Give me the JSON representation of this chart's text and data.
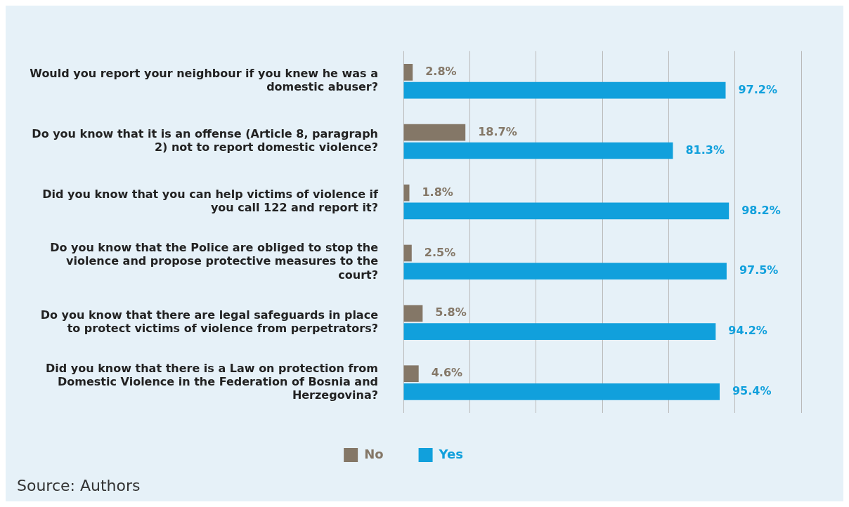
{
  "chart_data": {
    "type": "bar",
    "orientation": "horizontal",
    "categories": [
      "Would you report your neighbour if you knew he was a domestic abuser?",
      "Do you know that it is an offense (Article 8, paragraph 2) not to report domestic violence?",
      "Did you know that you can help victims of violence if you call 122 and report it?",
      "Do you know that the Police are obliged to stop the violence and propose protective measures to the court?",
      "Do you know that there are legal safeguards in place to protect victims of violence from perpetrators?",
      "Did you know that there is a Law on protection from Domestic Violence in the Federation of Bosnia and Herzegovina?"
    ],
    "series": [
      {
        "name": "No",
        "color": "#847767",
        "values": [
          2.8,
          18.7,
          1.8,
          2.5,
          5.8,
          4.6
        ],
        "value_labels": [
          "2.8%",
          "18.7%",
          "1.8%",
          "2.5%",
          "5.8%",
          "4.6%"
        ]
      },
      {
        "name": "Yes",
        "color": "#11a0dc",
        "values": [
          97.2,
          81.3,
          98.2,
          97.5,
          94.2,
          95.4
        ],
        "value_labels": [
          "97.2%",
          "81.3%",
          "98.2%",
          "97.5%",
          "94.2%",
          "95.4%"
        ]
      }
    ],
    "xlim": [
      0,
      120
    ],
    "xticks": [
      {
        "value": 0,
        "label": null
      },
      {
        "value": 20,
        "label": null
      },
      {
        "value": 40,
        "label": null
      },
      {
        "value": 60,
        "label": null
      },
      {
        "value": 80,
        "label": null
      },
      {
        "value": 100,
        "label": null
      },
      {
        "value": 120,
        "label": null
      }
    ],
    "grid": "x",
    "tick_labels": "y",
    "legend": "bottom",
    "annotations": [
      "Source: Authors"
    ]
  }
}
